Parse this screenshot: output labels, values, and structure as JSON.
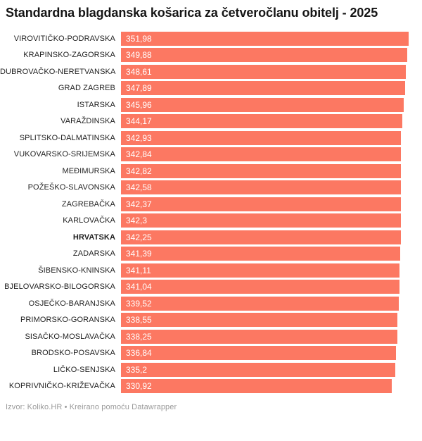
{
  "title": "Standardna blagdanska košarica za četveročlanu obitelj - 2025",
  "footer": {
    "prefix": "Izvor:",
    "source_name": "Koliko.HR",
    "separator": "•",
    "attribution": "Kreirano pomoću Datawrapper"
  },
  "colors": {
    "bar": "#fc7862",
    "value_text": "#ffffff",
    "label_text": "#1f1f1f",
    "title_text": "#161616",
    "footer_text": "#9a9a9a"
  },
  "chart_data": {
    "type": "bar",
    "orientation": "horizontal",
    "title": "Standardna blagdanska košarica za četveročlanu obitelj - 2025",
    "xlabel": "",
    "ylabel": "",
    "xlim": [
      0,
      351.98
    ],
    "grid": false,
    "legend": false,
    "highlight_category": "HRVATSKA",
    "categories": [
      "VIROVITIČKO-PODRAVSKA",
      "KRAPINSKO-ZAGORSKA",
      "DUBROVAČKO-NERETVANSKA",
      "GRAD ZAGREB",
      "ISTARSKA",
      "VARAŽDINSKA",
      "SPLITSKO-DALMATINSKA",
      "VUKOVARSKO-SRIJEMSKA",
      "MEĐIMURSKA",
      "POŽEŠKO-SLAVONSKA",
      "ZAGREBAČKA",
      "KARLOVAČKA",
      "HRVATSKA",
      "ZADARSKA",
      "ŠIBENSKO-KNINSKA",
      "BJELOVARSKO-BILOGORSKA",
      "OSJEČKO-BARANJSKA",
      "PRIMORSKO-GORANSKA",
      "SISAČKO-MOSLAVAČKA",
      "BRODSKO-POSAVSKA",
      "LIČKO-SENJSKA",
      "KOPRIVNIČKO-KRIŽEVAČKA"
    ],
    "values": [
      351.98,
      349.88,
      348.61,
      347.89,
      345.96,
      344.17,
      342.93,
      342.84,
      342.82,
      342.58,
      342.37,
      342.3,
      342.25,
      341.39,
      341.11,
      341.04,
      339.52,
      338.55,
      338.25,
      336.84,
      335.2,
      330.92
    ],
    "value_labels": [
      "351,98",
      "349,88",
      "348,61",
      "347,89",
      "345,96",
      "344,17",
      "342,93",
      "342,84",
      "342,82",
      "342,58",
      "342,37",
      "342,3",
      "342,25",
      "341,39",
      "341,11",
      "341,04",
      "339,52",
      "338,55",
      "338,25",
      "336,84",
      "335,2",
      "330,92"
    ]
  }
}
